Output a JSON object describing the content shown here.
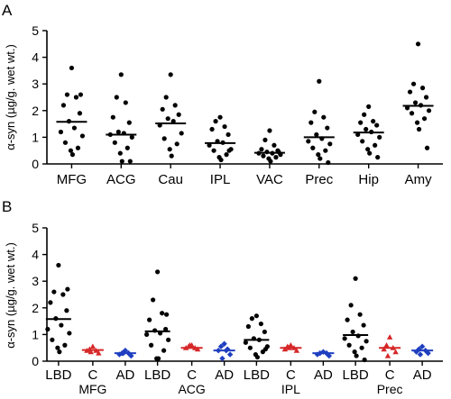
{
  "chart_data": [
    {
      "panel": "A",
      "type": "scatter",
      "ylabel": "α-syn (µg/g. wet wt.)",
      "ylim": [
        0,
        5
      ],
      "yticks": [
        "0",
        "1",
        "2",
        "3",
        "4",
        "5"
      ],
      "categories": [
        "MFG",
        "ACG",
        "Cau",
        "IPL",
        "VAC",
        "Prec",
        "Hip",
        "Amy"
      ],
      "median": [
        1.58,
        1.1,
        1.52,
        0.78,
        0.42,
        1.0,
        1.18,
        2.18
      ],
      "points": [
        [
          3.6,
          2.6,
          2.5,
          2.2,
          1.9,
          1.6,
          1.35,
          1.2,
          1.05,
          0.8,
          0.6,
          0.5,
          0.35,
          2.6
        ],
        [
          3.35,
          2.5,
          2.3,
          1.75,
          1.55,
          1.2,
          1.15,
          1.1,
          1.0,
          0.8,
          0.6,
          0.4,
          0.1,
          0.1
        ],
        [
          3.35,
          2.5,
          2.2,
          2.05,
          1.85,
          1.7,
          1.6,
          1.45,
          1.15,
          0.95,
          0.75,
          0.55,
          0.3
        ],
        [
          1.75,
          1.6,
          1.4,
          1.3,
          1.1,
          0.85,
          0.8,
          0.7,
          0.55,
          0.5,
          0.35,
          0.25,
          0.15,
          0.5
        ],
        [
          1.25,
          0.9,
          0.7,
          0.55,
          0.5,
          0.45,
          0.4,
          0.4,
          0.35,
          0.3,
          0.25,
          0.2,
          0.1,
          0.45
        ],
        [
          3.1,
          1.95,
          1.75,
          1.55,
          1.35,
          1.1,
          0.95,
          0.85,
          0.75,
          0.6,
          0.5,
          0.35,
          0.2,
          0.05
        ],
        [
          2.15,
          1.85,
          1.6,
          1.55,
          1.45,
          1.3,
          1.2,
          1.1,
          1.0,
          0.85,
          0.7,
          0.55,
          0.4,
          0.25
        ],
        [
          4.5,
          3.0,
          2.85,
          2.7,
          2.5,
          2.3,
          2.2,
          2.1,
          2.0,
          1.9,
          1.7,
          1.55,
          1.3,
          0.6
        ]
      ],
      "colors": [
        "#000000"
      ]
    },
    {
      "panel": "B",
      "type": "scatter",
      "ylabel": "α-syn (µg/g. wet wt.)",
      "ylim": [
        0,
        5
      ],
      "yticks": [
        "0",
        "1",
        "2",
        "3",
        "4",
        "5"
      ],
      "groups": [
        "MFG",
        "ACG",
        "IPL",
        "Prec"
      ],
      "subcategories": [
        "LBD",
        "C",
        "AD"
      ],
      "colors": [
        "#000000",
        "#d62728",
        "#1f3fc0"
      ],
      "median": [
        [
          1.58,
          0.42,
          0.3
        ],
        [
          1.12,
          0.5,
          0.4
        ],
        [
          0.8,
          0.5,
          0.3
        ],
        [
          0.98,
          0.5,
          0.4
        ]
      ],
      "points": [
        [
          [
            3.6,
            2.6,
            2.5,
            2.2,
            1.9,
            1.6,
            1.35,
            1.2,
            1.05,
            0.8,
            0.6,
            0.5,
            0.35,
            2.7
          ],
          [
            0.55,
            0.45,
            0.4,
            0.4,
            0.3,
            0.35
          ],
          [
            0.4,
            0.3,
            0.3,
            0.25,
            0.2,
            0.3
          ]
        ],
        [
          [
            3.35,
            2.3,
            1.8,
            1.55,
            1.2,
            1.15,
            1.05,
            1.0,
            0.8,
            0.6,
            0.4,
            0.1,
            0.1,
            1.75
          ],
          [
            0.6,
            0.55,
            0.5,
            0.5,
            0.45,
            0.6
          ],
          [
            0.65,
            0.55,
            0.45,
            0.4,
            0.25,
            0.1,
            0.4
          ]
        ],
        [
          [
            1.7,
            1.6,
            1.4,
            1.3,
            1.1,
            0.85,
            0.8,
            0.7,
            0.55,
            0.5,
            0.35,
            0.25,
            0.15,
            0.45
          ],
          [
            0.6,
            0.55,
            0.5,
            0.45,
            0.4,
            0.5
          ],
          [
            0.35,
            0.3,
            0.3,
            0.25,
            0.2
          ]
        ],
        [
          [
            3.1,
            2.1,
            1.75,
            1.55,
            1.35,
            1.1,
            0.95,
            0.85,
            0.75,
            0.6,
            0.5,
            0.35,
            0.2,
            0.05
          ],
          [
            0.9,
            0.6,
            0.5,
            0.45,
            0.35,
            0.2
          ],
          [
            0.55,
            0.45,
            0.4,
            0.35,
            0.3,
            0.25
          ]
        ]
      ]
    }
  ]
}
